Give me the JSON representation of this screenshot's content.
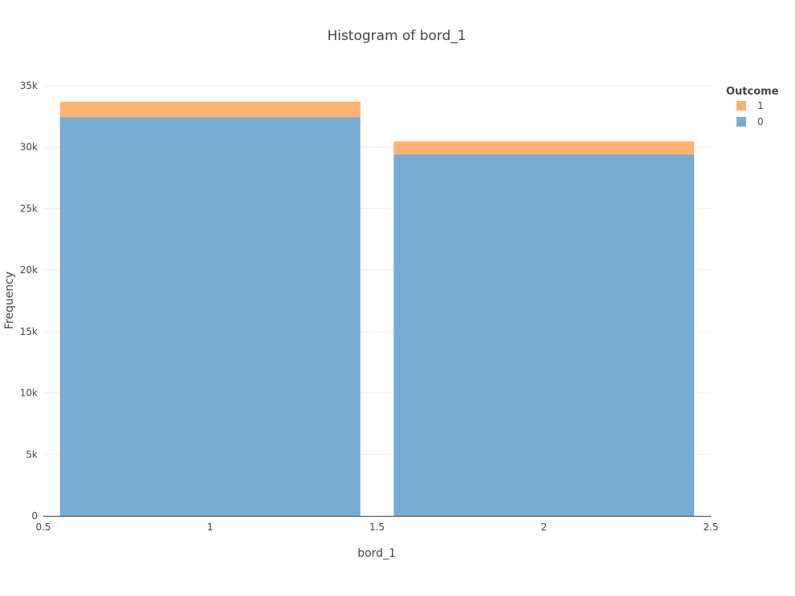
{
  "chart_data": {
    "type": "bar",
    "barmode": "stack",
    "title": "Histogram of bord_1",
    "xlabel": "bord_1",
    "ylabel": "Frequency",
    "xlim": [
      0.5,
      2.5
    ],
    "ylim": [
      0,
      35000
    ],
    "x_ticks": [
      {
        "value": 0.5,
        "label": "0.5"
      },
      {
        "value": 1,
        "label": "1"
      },
      {
        "value": 1.5,
        "label": "1.5"
      },
      {
        "value": 2,
        "label": "2"
      },
      {
        "value": 2.5,
        "label": "2.5"
      }
    ],
    "y_ticks": [
      {
        "value": 0,
        "label": "0"
      },
      {
        "value": 5000,
        "label": "5k"
      },
      {
        "value": 10000,
        "label": "10k"
      },
      {
        "value": 15000,
        "label": "15k"
      },
      {
        "value": 20000,
        "label": "20k"
      },
      {
        "value": 25000,
        "label": "25k"
      },
      {
        "value": 30000,
        "label": "30k"
      },
      {
        "value": 35000,
        "label": "35k"
      }
    ],
    "bins": [
      {
        "start": 0.55,
        "end": 1.45,
        "center": 1
      },
      {
        "start": 1.55,
        "end": 2.45,
        "center": 2
      }
    ],
    "series": [
      {
        "name": "0",
        "color": "#79acd3",
        "values": [
          32450,
          29420
        ]
      },
      {
        "name": "1",
        "color": "#ffb171",
        "values": [
          1250,
          1050
        ]
      }
    ],
    "legend": {
      "title": "Outcome",
      "position": "top-right",
      "order": [
        "1",
        "0"
      ]
    },
    "grid": true
  }
}
